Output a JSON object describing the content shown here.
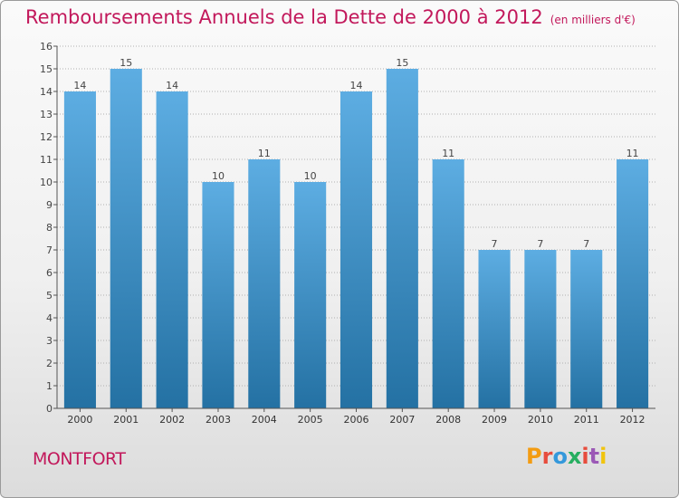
{
  "title": "Remboursements Annuels de la Dette de 2000 à 2012",
  "subtitle": "(en milliers d'€)",
  "commune": "MONTFORT",
  "brand": {
    "text": "Proxiti",
    "colors": [
      "#f39c12",
      "#e74c3c",
      "#3498db",
      "#27ae60",
      "#e74c3c",
      "#9b59b6",
      "#f1c40f"
    ]
  },
  "colors": {
    "title": "#c2185b",
    "bar_top": "#5dade2",
    "bar_bottom": "#2471a3",
    "grid": "#b0b0b0"
  },
  "chart_data": {
    "type": "bar",
    "title": "Remboursements Annuels de la Dette de 2000 à 2012",
    "categories": [
      "2000",
      "2001",
      "2002",
      "2003",
      "2004",
      "2005",
      "2006",
      "2007",
      "2008",
      "2009",
      "2010",
      "2011",
      "2012"
    ],
    "values": [
      14,
      15,
      14,
      10,
      11,
      10,
      14,
      15,
      11,
      7,
      7,
      7,
      11
    ],
    "ylim": [
      0,
      16
    ],
    "yticks": [
      0,
      1,
      2,
      3,
      4,
      5,
      6,
      7,
      8,
      9,
      10,
      11,
      12,
      13,
      14,
      15,
      16
    ],
    "grid": true,
    "data_labels": true
  }
}
